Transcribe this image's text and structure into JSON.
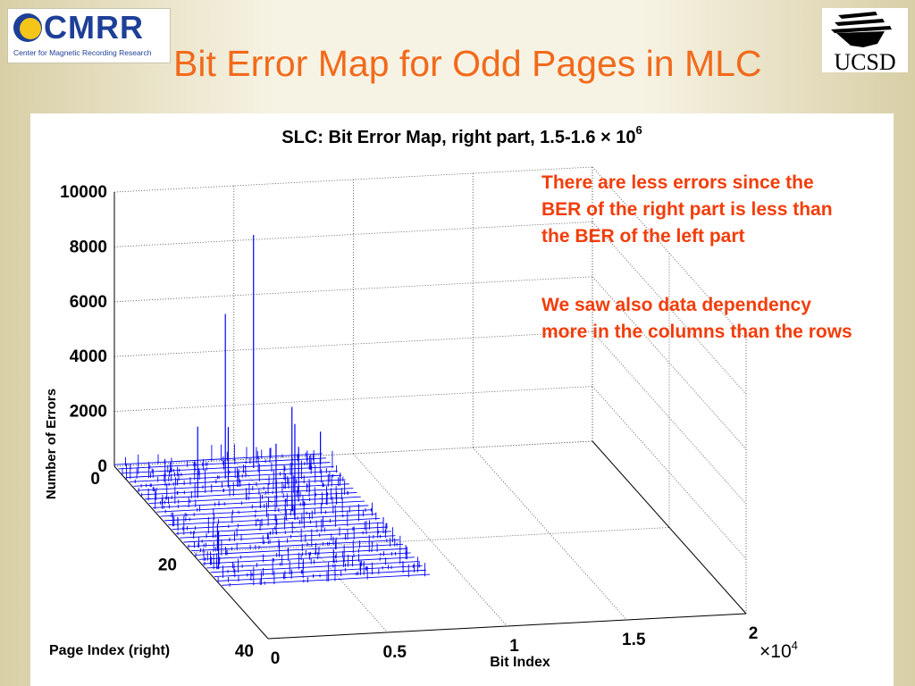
{
  "slide": {
    "title": "Bit Error Map for Odd Pages in MLC",
    "logo_left": {
      "name": "CMRR",
      "subtitle": "Center for Magnetic Recording Research"
    },
    "logo_right": {
      "name": "UCSD"
    },
    "notes": [
      "There are less errors since the BER of the right part is less than the BER of the left part",
      "We saw also data dependency more in the columns than the rows"
    ]
  },
  "chart_data": {
    "type": "3d-stem",
    "title": "SLC: Bit Error Map, right part, 1.5-1.6 × 10",
    "title_exponent": "6",
    "xlabel": "Bit Index",
    "ylabel": "Page Index (right)",
    "zlabel": "Number of Errors",
    "x_ticks": [
      "0",
      "0.5",
      "1",
      "1.5",
      "2"
    ],
    "x_scale_label": "×10",
    "x_scale_exponent": "4",
    "y_ticks": [
      "0",
      "20",
      "40"
    ],
    "z_ticks": [
      "0",
      "2000",
      "4000",
      "6000",
      "8000",
      "10000"
    ],
    "xlim": [
      0,
      20000
    ],
    "ylim": [
      0,
      40
    ],
    "zlim": [
      0,
      10000
    ],
    "grid": true,
    "series_color": "#0000ff",
    "notable_peaks": [
      {
        "x": 5500,
        "y": 2,
        "z": 8500
      },
      {
        "x": 4000,
        "y": 4,
        "z": 6000
      },
      {
        "x": 5500,
        "y": 12,
        "z": 3800
      },
      {
        "x": 5300,
        "y": 14,
        "z": 3500
      },
      {
        "x": 2200,
        "y": 8,
        "z": 2600
      },
      {
        "x": 3800,
        "y": 6,
        "z": 2200
      },
      {
        "x": 6100,
        "y": 10,
        "z": 2000
      },
      {
        "x": 8300,
        "y": 2,
        "z": 1200
      },
      {
        "x": 500,
        "y": 24,
        "z": 1400
      },
      {
        "x": 5800,
        "y": 6,
        "z": 1500
      },
      {
        "x": 1100,
        "y": 20,
        "z": 1000
      }
    ]
  }
}
